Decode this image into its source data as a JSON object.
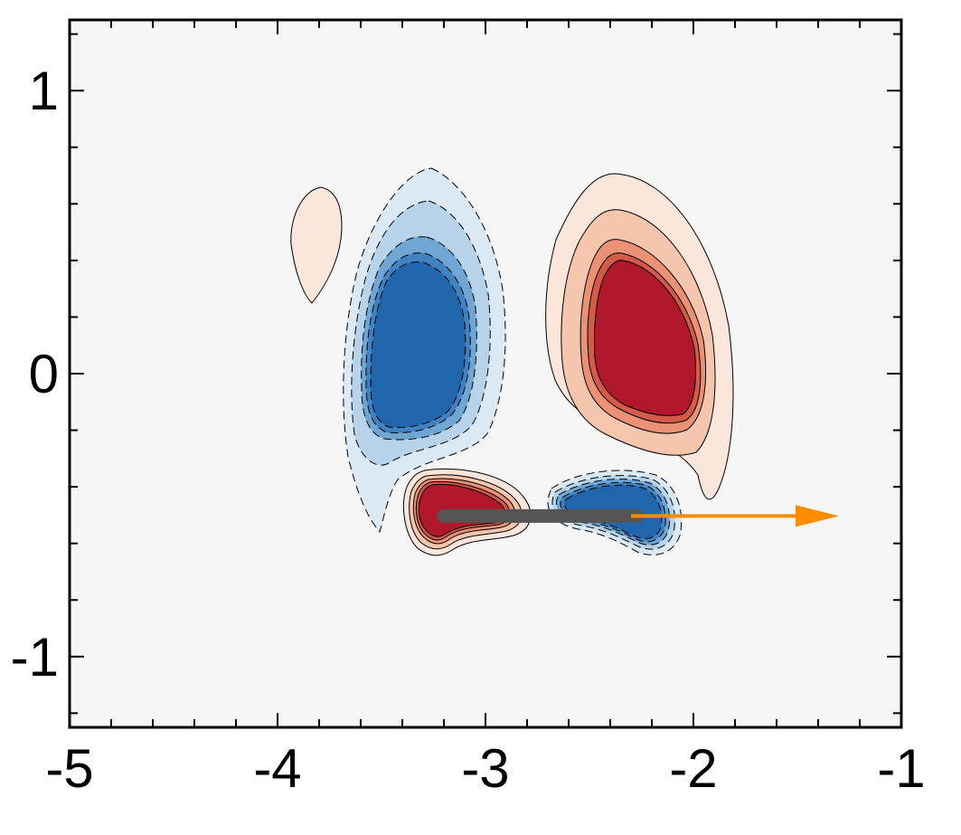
{
  "chart_data": {
    "type": "contour",
    "title": "",
    "xlabel": "",
    "ylabel": "",
    "xlim": [
      -5,
      -1
    ],
    "ylim": [
      -1.25,
      1.25
    ],
    "x_ticks": [
      -5,
      -4,
      -3,
      -2,
      -1
    ],
    "y_ticks": [
      -1,
      0,
      1
    ],
    "x_tick_labels": [
      "-5",
      "-4",
      "-3",
      "-2",
      "-1"
    ],
    "y_tick_labels": [
      "-1",
      "0",
      "1"
    ],
    "grid": false,
    "background_color": "#f6f6f6",
    "colors": {
      "positive": [
        "#fbe6dc",
        "#f6c5ad",
        "#eb9276",
        "#d45a4a",
        "#b2182b"
      ],
      "negative": [
        "#dbe9f5",
        "#b6d3e9",
        "#6fa6d3",
        "#4182c2",
        "#2166ac"
      ],
      "plate": "#555555",
      "arrow": "#ff8c00"
    },
    "vortices": [
      {
        "id": "left-negative",
        "sign": "negative",
        "center": [
          -3.38,
          0.05
        ],
        "levels": 5
      },
      {
        "id": "right-positive",
        "sign": "positive",
        "center": [
          -2.28,
          0.12
        ],
        "levels": 5
      },
      {
        "id": "small-positive",
        "sign": "positive",
        "center": [
          -3.82,
          0.45
        ],
        "levels": 1
      },
      {
        "id": "bottom-positive",
        "sign": "positive",
        "center": [
          -3.2,
          -0.52
        ],
        "levels": 5
      },
      {
        "id": "bottom-negative",
        "sign": "negative",
        "center": [
          -2.3,
          -0.53
        ],
        "levels": 5
      }
    ],
    "plate": {
      "x": [
        -3.2,
        -2.27
      ],
      "y": -0.5
    },
    "arrow": {
      "x": [
        -2.3,
        -1.3
      ],
      "y": -0.5
    }
  }
}
